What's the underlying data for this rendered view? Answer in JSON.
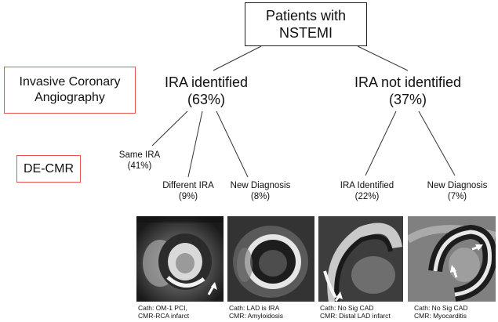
{
  "root": {
    "line1": "Patients with",
    "line2": "NSTEMI"
  },
  "left_labels": {
    "ica_line1": "Invasive Coronary",
    "ica_line2": "Angiography",
    "decmr": "DE-CMR"
  },
  "ira_identified": {
    "label": "IRA identified",
    "percent": "(63%)"
  },
  "ira_not_identified": {
    "label": "IRA not identified",
    "percent": "(37%)"
  },
  "leaves": {
    "same_ira": {
      "label": "Same IRA",
      "percent": "(41%)"
    },
    "different_ira": {
      "label": "Different  IRA",
      "percent": "(9%)"
    },
    "new_diag_left": {
      "label": "New Diagnosis",
      "percent": "(8%)"
    },
    "ira_identified_right": {
      "label": "IRA Identified",
      "percent": "(22%)"
    },
    "new_diag_right": {
      "label": "New Diagnosis",
      "percent": "(7%)"
    }
  },
  "images": [
    {
      "cath": "Cath: OM-1 PCI,",
      "cmr": "CMR-RCA infarct"
    },
    {
      "cath": "Cath: LAD is IRA",
      "cmr": "CMR: Amyloidosis"
    },
    {
      "cath": "Cath: No Sig CAD",
      "cmr": "CMR: Distal LAD infarct"
    },
    {
      "cath": "Cath: No Sig CAD",
      "cmr": "CMR: Myocarditis"
    }
  ],
  "colors": {
    "accent_box": "#e8534d",
    "line": "#333333"
  }
}
